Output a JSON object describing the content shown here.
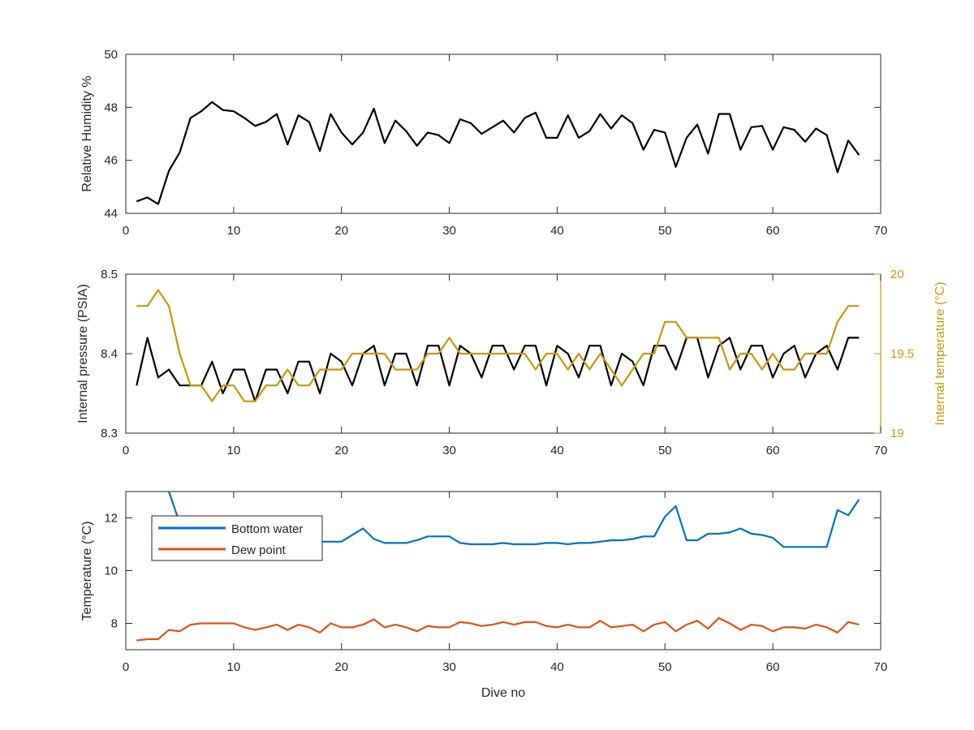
{
  "chart_data": [
    {
      "type": "line",
      "id": "humidity",
      "xlabel": "",
      "ylabel": "Relative Humidity %",
      "xlim": [
        0,
        70
      ],
      "ylim": [
        44,
        50
      ],
      "xticks": [
        0,
        10,
        20,
        30,
        40,
        50,
        60,
        70
      ],
      "yticks": [
        44,
        46,
        48,
        50
      ],
      "grid": false,
      "series": [
        {
          "color": "#000000",
          "x": [
            1,
            2,
            3,
            4,
            5,
            6,
            7,
            8,
            9,
            10,
            11,
            12,
            13,
            14,
            15,
            16,
            17,
            18,
            19,
            20,
            21,
            22,
            23,
            24,
            25,
            26,
            27,
            28,
            29,
            30,
            31,
            32,
            33,
            34,
            35,
            36,
            37,
            38,
            39,
            40,
            41,
            42,
            43,
            44,
            45,
            46,
            47,
            48,
            49,
            50,
            51,
            52,
            53,
            54,
            55,
            56,
            57,
            58,
            59,
            60,
            61,
            62,
            63,
            64,
            65,
            66,
            67,
            68
          ],
          "y": [
            44.45,
            44.6,
            44.35,
            45.6,
            46.3,
            47.6,
            47.85,
            48.2,
            47.9,
            47.85,
            47.6,
            47.3,
            47.45,
            47.75,
            46.6,
            47.7,
            47.45,
            46.35,
            47.75,
            47.05,
            46.6,
            47.05,
            47.95,
            46.65,
            47.5,
            47.1,
            46.55,
            47.05,
            46.95,
            46.65,
            47.55,
            47.4,
            47.0,
            47.25,
            47.5,
            47.05,
            47.6,
            47.8,
            46.85,
            46.85,
            47.7,
            46.85,
            47.1,
            47.75,
            47.2,
            47.7,
            47.4,
            46.4,
            47.15,
            47.05,
            45.75,
            46.85,
            47.35,
            46.25,
            47.75,
            47.75,
            46.4,
            47.25,
            47.3,
            46.4,
            47.25,
            47.15,
            46.7,
            47.2,
            46.95,
            45.55,
            46.75,
            46.2
          ]
        }
      ]
    },
    {
      "type": "line",
      "id": "pressure",
      "xlabel": "",
      "ylabel": "Internal pressure (PSIA)",
      "ylabel_right": "Internal temperature (°C)",
      "xlim": [
        0,
        70
      ],
      "ylim": [
        8.3,
        8.5
      ],
      "ylim_right": [
        19,
        20
      ],
      "xticks": [
        0,
        10,
        20,
        30,
        40,
        50,
        60,
        70
      ],
      "yticks": [
        "8.3",
        "8.4",
        "8.5"
      ],
      "yticks_right": [
        "19",
        "19.5",
        "20"
      ],
      "grid": false,
      "series": [
        {
          "axis": "left",
          "color": "#000000",
          "x": [
            1,
            2,
            3,
            4,
            5,
            6,
            7,
            8,
            9,
            10,
            11,
            12,
            13,
            14,
            15,
            16,
            17,
            18,
            19,
            20,
            21,
            22,
            23,
            24,
            25,
            26,
            27,
            28,
            29,
            30,
            31,
            32,
            33,
            34,
            35,
            36,
            37,
            38,
            39,
            40,
            41,
            42,
            43,
            44,
            45,
            46,
            47,
            48,
            49,
            50,
            51,
            52,
            53,
            54,
            55,
            56,
            57,
            58,
            59,
            60,
            61,
            62,
            63,
            64,
            65,
            66,
            67,
            68
          ],
          "y": [
            8.36,
            8.42,
            8.37,
            8.38,
            8.36,
            8.36,
            8.36,
            8.39,
            8.35,
            8.38,
            8.38,
            8.34,
            8.38,
            8.38,
            8.35,
            8.39,
            8.39,
            8.35,
            8.4,
            8.39,
            8.36,
            8.4,
            8.41,
            8.36,
            8.4,
            8.4,
            8.36,
            8.41,
            8.41,
            8.36,
            8.41,
            8.4,
            8.37,
            8.41,
            8.41,
            8.38,
            8.41,
            8.41,
            8.36,
            8.41,
            8.4,
            8.37,
            8.41,
            8.41,
            8.36,
            8.4,
            8.39,
            8.36,
            8.41,
            8.41,
            8.38,
            8.42,
            8.42,
            8.37,
            8.41,
            8.42,
            8.38,
            8.41,
            8.41,
            8.37,
            8.4,
            8.41,
            8.37,
            8.4,
            8.41,
            8.38,
            8.42,
            8.42
          ]
        },
        {
          "axis": "right",
          "color": "#C8960F",
          "x": [
            1,
            2,
            3,
            4,
            5,
            6,
            7,
            8,
            9,
            10,
            11,
            12,
            13,
            14,
            15,
            16,
            17,
            18,
            19,
            20,
            21,
            22,
            23,
            24,
            25,
            26,
            27,
            28,
            29,
            30,
            31,
            32,
            33,
            34,
            35,
            36,
            37,
            38,
            39,
            40,
            41,
            42,
            43,
            44,
            45,
            46,
            47,
            48,
            49,
            50,
            51,
            52,
            53,
            54,
            55,
            56,
            57,
            58,
            59,
            60,
            61,
            62,
            63,
            64,
            65,
            66,
            67,
            68
          ],
          "y": [
            19.8,
            19.8,
            19.9,
            19.8,
            19.5,
            19.3,
            19.3,
            19.2,
            19.3,
            19.3,
            19.2,
            19.2,
            19.3,
            19.3,
            19.4,
            19.3,
            19.3,
            19.4,
            19.4,
            19.4,
            19.5,
            19.5,
            19.5,
            19.5,
            19.4,
            19.4,
            19.4,
            19.5,
            19.5,
            19.6,
            19.5,
            19.5,
            19.5,
            19.5,
            19.5,
            19.5,
            19.5,
            19.4,
            19.5,
            19.5,
            19.4,
            19.5,
            19.4,
            19.5,
            19.4,
            19.3,
            19.4,
            19.5,
            19.5,
            19.7,
            19.7,
            19.6,
            19.6,
            19.6,
            19.6,
            19.4,
            19.5,
            19.5,
            19.4,
            19.5,
            19.4,
            19.4,
            19.5,
            19.5,
            19.5,
            19.7,
            19.8,
            19.8
          ]
        }
      ]
    },
    {
      "type": "line",
      "id": "temperature",
      "xlabel": "Dive no",
      "ylabel": "Temperature (°C)",
      "xlim": [
        0,
        70
      ],
      "ylim": [
        7,
        13
      ],
      "xticks": [
        0,
        10,
        20,
        30,
        40,
        50,
        60,
        70
      ],
      "yticks": [
        8,
        10,
        12
      ],
      "grid": false,
      "legend_position": "top-left",
      "series": [
        {
          "name": "Bottom water",
          "color": "#0072BD",
          "x": [
            4,
            5,
            6,
            7,
            8,
            9,
            10,
            11,
            12,
            13,
            14,
            15,
            16,
            17,
            18,
            19,
            20,
            21,
            22,
            23,
            24,
            25,
            26,
            27,
            28,
            29,
            30,
            31,
            32,
            33,
            34,
            35,
            36,
            37,
            38,
            39,
            40,
            41,
            42,
            43,
            44,
            45,
            46,
            47,
            48,
            49,
            50,
            51,
            52,
            53,
            54,
            55,
            56,
            57,
            58,
            59,
            60,
            61,
            62,
            63,
            64,
            65,
            66,
            67,
            68
          ],
          "y": [
            13.0,
            11.8,
            11.3,
            11.15,
            11.1,
            11.1,
            11.1,
            11.1,
            11.1,
            11.1,
            11.1,
            11.1,
            11.1,
            11.1,
            11.1,
            11.1,
            11.1,
            11.35,
            11.6,
            11.2,
            11.05,
            11.05,
            11.05,
            11.15,
            11.3,
            11.3,
            11.3,
            11.05,
            11.0,
            11.0,
            11.0,
            11.05,
            11.0,
            11.0,
            11.0,
            11.05,
            11.05,
            11.0,
            11.05,
            11.05,
            11.1,
            11.15,
            11.15,
            11.2,
            11.3,
            11.3,
            12.05,
            12.45,
            11.15,
            11.15,
            11.4,
            11.4,
            11.45,
            11.6,
            11.4,
            11.35,
            11.25,
            10.9,
            10.9,
            10.9,
            10.9,
            10.9,
            12.3,
            12.1,
            12.7
          ]
        },
        {
          "name": "Dew point",
          "color": "#D95319",
          "x": [
            1,
            2,
            3,
            4,
            5,
            6,
            7,
            8,
            9,
            10,
            11,
            12,
            13,
            14,
            15,
            16,
            17,
            18,
            19,
            20,
            21,
            22,
            23,
            24,
            25,
            26,
            27,
            28,
            29,
            30,
            31,
            32,
            33,
            34,
            35,
            36,
            37,
            38,
            39,
            40,
            41,
            42,
            43,
            44,
            45,
            46,
            47,
            48,
            49,
            50,
            51,
            52,
            53,
            54,
            55,
            56,
            57,
            58,
            59,
            60,
            61,
            62,
            63,
            64,
            65,
            66,
            67,
            68
          ],
          "y": [
            7.35,
            7.4,
            7.4,
            7.75,
            7.7,
            7.95,
            8.0,
            8.0,
            8.0,
            8.0,
            7.85,
            7.75,
            7.85,
            7.95,
            7.75,
            7.95,
            7.85,
            7.65,
            8.0,
            7.85,
            7.85,
            7.95,
            8.15,
            7.85,
            7.95,
            7.85,
            7.7,
            7.9,
            7.85,
            7.85,
            8.05,
            8.0,
            7.9,
            7.95,
            8.05,
            7.95,
            8.05,
            8.05,
            7.9,
            7.85,
            7.95,
            7.85,
            7.85,
            8.1,
            7.85,
            7.9,
            7.95,
            7.7,
            7.95,
            8.05,
            7.7,
            7.95,
            8.1,
            7.8,
            8.2,
            8.0,
            7.75,
            7.95,
            7.9,
            7.7,
            7.85,
            7.85,
            7.8,
            7.95,
            7.85,
            7.65,
            8.05,
            7.95
          ]
        }
      ]
    }
  ]
}
